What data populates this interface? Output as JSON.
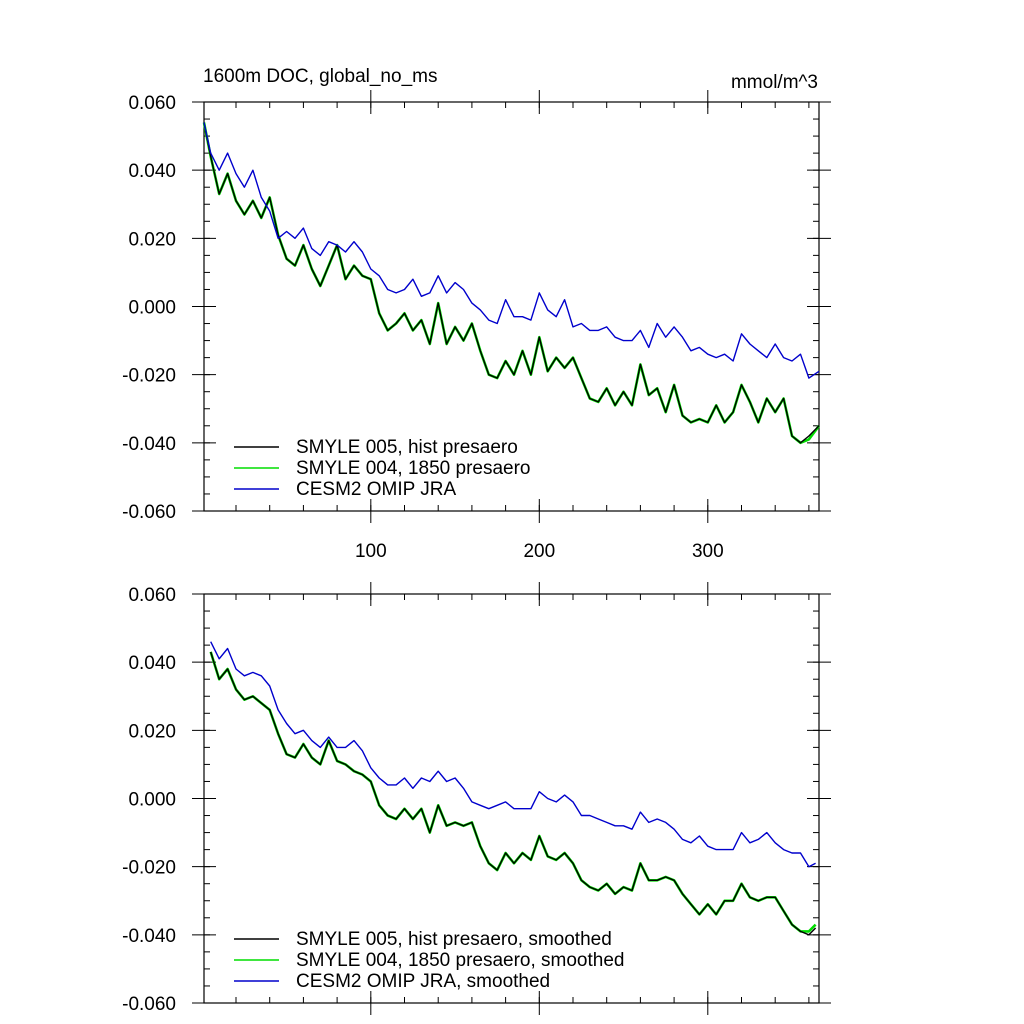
{
  "figure": {
    "title": "1600m DOC, global_no_ms",
    "units": "mmol/m^3",
    "colors": {
      "smyle005": "#000000",
      "smyle004": "#00dd00",
      "omip": "#0000cc"
    }
  },
  "chart_data": [
    {
      "type": "line",
      "panel": "top",
      "title": "1600m DOC, global_no_ms",
      "units_label": "mmol/m^3",
      "xlabel": "",
      "ylabel": "",
      "xlim": [
        1,
        366
      ],
      "ylim": [
        -0.06,
        0.06
      ],
      "x_ticks": [
        100,
        200,
        300
      ],
      "x_tick_labels": [
        "100",
        "200",
        "300"
      ],
      "y_ticks": [
        -0.06,
        -0.04,
        -0.02,
        0.0,
        0.02,
        0.04,
        0.06
      ],
      "y_tick_labels": [
        "-0.060",
        "-0.040",
        "-0.020",
        "0.000",
        "0.020",
        "0.040",
        "0.060"
      ],
      "legend_position": "bottom-left",
      "series": [
        {
          "name": "SMYLE 005, hist presaero",
          "color": "#000000",
          "x": [
            1,
            5,
            10,
            15,
            20,
            25,
            30,
            35,
            40,
            45,
            50,
            55,
            60,
            65,
            70,
            75,
            80,
            85,
            90,
            95,
            100,
            105,
            110,
            115,
            120,
            125,
            130,
            135,
            140,
            145,
            150,
            155,
            160,
            165,
            170,
            175,
            180,
            185,
            190,
            195,
            200,
            205,
            210,
            215,
            220,
            225,
            230,
            235,
            240,
            245,
            250,
            255,
            260,
            265,
            270,
            275,
            280,
            285,
            290,
            295,
            300,
            305,
            310,
            315,
            320,
            325,
            330,
            335,
            340,
            345,
            350,
            355,
            360,
            366
          ],
          "values": [
            0.054,
            0.044,
            0.033,
            0.039,
            0.031,
            0.027,
            0.031,
            0.026,
            0.032,
            0.021,
            0.014,
            0.012,
            0.018,
            0.011,
            0.006,
            0.012,
            0.018,
            0.008,
            0.012,
            0.009,
            0.008,
            -0.002,
            -0.007,
            -0.005,
            -0.002,
            -0.007,
            -0.004,
            -0.011,
            0.001,
            -0.011,
            -0.006,
            -0.01,
            -0.005,
            -0.013,
            -0.02,
            -0.021,
            -0.016,
            -0.02,
            -0.013,
            -0.02,
            -0.009,
            -0.019,
            -0.015,
            -0.018,
            -0.015,
            -0.021,
            -0.027,
            -0.028,
            -0.024,
            -0.029,
            -0.025,
            -0.029,
            -0.017,
            -0.026,
            -0.024,
            -0.031,
            -0.023,
            -0.032,
            -0.034,
            -0.033,
            -0.034,
            -0.029,
            -0.034,
            -0.031,
            -0.023,
            -0.028,
            -0.034,
            -0.027,
            -0.031,
            -0.027,
            -0.038,
            -0.04,
            -0.038,
            -0.035
          ]
        },
        {
          "name": "SMYLE 004, 1850 presaero",
          "color": "#00dd00",
          "x": [
            1,
            5,
            10,
            15,
            20,
            25,
            30,
            35,
            40,
            45,
            50,
            55,
            60,
            65,
            70,
            75,
            80,
            85,
            90,
            95,
            100,
            105,
            110,
            115,
            120,
            125,
            130,
            135,
            140,
            145,
            150,
            155,
            160,
            165,
            170,
            175,
            180,
            185,
            190,
            195,
            200,
            205,
            210,
            215,
            220,
            225,
            230,
            235,
            240,
            245,
            250,
            255,
            260,
            265,
            270,
            275,
            280,
            285,
            290,
            295,
            300,
            305,
            310,
            315,
            320,
            325,
            330,
            335,
            340,
            345,
            350,
            355,
            360,
            366
          ],
          "values": [
            0.054,
            0.044,
            0.033,
            0.039,
            0.031,
            0.027,
            0.031,
            0.026,
            0.032,
            0.021,
            0.014,
            0.012,
            0.018,
            0.011,
            0.006,
            0.012,
            0.018,
            0.008,
            0.012,
            0.009,
            0.008,
            -0.002,
            -0.007,
            -0.005,
            -0.002,
            -0.007,
            -0.004,
            -0.011,
            0.001,
            -0.011,
            -0.006,
            -0.01,
            -0.005,
            -0.013,
            -0.02,
            -0.021,
            -0.016,
            -0.02,
            -0.013,
            -0.02,
            -0.009,
            -0.019,
            -0.015,
            -0.018,
            -0.015,
            -0.021,
            -0.027,
            -0.028,
            -0.024,
            -0.029,
            -0.025,
            -0.029,
            -0.017,
            -0.026,
            -0.024,
            -0.031,
            -0.023,
            -0.032,
            -0.034,
            -0.033,
            -0.034,
            -0.029,
            -0.034,
            -0.031,
            -0.023,
            -0.028,
            -0.034,
            -0.027,
            -0.031,
            -0.027,
            -0.038,
            -0.04,
            -0.039,
            -0.035
          ]
        },
        {
          "name": "CESM2 OMIP JRA",
          "color": "#0000cc",
          "x": [
            1,
            5,
            10,
            15,
            20,
            25,
            30,
            35,
            40,
            45,
            50,
            55,
            60,
            65,
            70,
            75,
            80,
            85,
            90,
            95,
            100,
            105,
            110,
            115,
            120,
            125,
            130,
            135,
            140,
            145,
            150,
            155,
            160,
            165,
            170,
            175,
            180,
            185,
            190,
            195,
            200,
            205,
            210,
            215,
            220,
            225,
            230,
            235,
            240,
            245,
            250,
            255,
            260,
            265,
            270,
            275,
            280,
            285,
            290,
            295,
            300,
            305,
            310,
            315,
            320,
            325,
            330,
            335,
            340,
            345,
            350,
            355,
            360,
            366
          ],
          "values": [
            0.054,
            0.045,
            0.04,
            0.045,
            0.039,
            0.035,
            0.04,
            0.032,
            0.028,
            0.02,
            0.022,
            0.02,
            0.023,
            0.017,
            0.015,
            0.019,
            0.018,
            0.016,
            0.019,
            0.016,
            0.011,
            0.009,
            0.005,
            0.004,
            0.005,
            0.008,
            0.003,
            0.004,
            0.009,
            0.004,
            0.007,
            0.005,
            0.001,
            -0.001,
            -0.004,
            -0.005,
            0.002,
            -0.003,
            -0.003,
            -0.004,
            0.004,
            -0.001,
            -0.003,
            0.002,
            -0.006,
            -0.005,
            -0.007,
            -0.007,
            -0.006,
            -0.009,
            -0.01,
            -0.01,
            -0.007,
            -0.012,
            -0.005,
            -0.009,
            -0.006,
            -0.009,
            -0.013,
            -0.012,
            -0.014,
            -0.015,
            -0.014,
            -0.016,
            -0.008,
            -0.011,
            -0.013,
            -0.015,
            -0.011,
            -0.015,
            -0.016,
            -0.014,
            -0.021,
            -0.019
          ]
        }
      ]
    },
    {
      "type": "line",
      "panel": "bottom",
      "title": "",
      "xlabel": "",
      "ylabel": "",
      "xlim": [
        1,
        366
      ],
      "ylim": [
        -0.06,
        0.06
      ],
      "x_ticks": [
        100,
        200,
        300
      ],
      "x_tick_labels": [],
      "y_ticks": [
        -0.06,
        -0.04,
        -0.02,
        0.0,
        0.02,
        0.04,
        0.06
      ],
      "y_tick_labels": [
        "-0.060",
        "-0.040",
        "-0.020",
        "0.000",
        "0.020",
        "0.040",
        "0.060"
      ],
      "legend_position": "bottom-left",
      "series": [
        {
          "name": "SMYLE 005, hist presaero, smoothed",
          "color": "#000000",
          "x": [
            5,
            10,
            15,
            20,
            25,
            30,
            35,
            40,
            45,
            50,
            55,
            60,
            65,
            70,
            75,
            80,
            85,
            90,
            95,
            100,
            105,
            110,
            115,
            120,
            125,
            130,
            135,
            140,
            145,
            150,
            155,
            160,
            165,
            170,
            175,
            180,
            185,
            190,
            195,
            200,
            205,
            210,
            215,
            220,
            225,
            230,
            235,
            240,
            245,
            250,
            255,
            260,
            265,
            270,
            275,
            280,
            285,
            290,
            295,
            300,
            305,
            310,
            315,
            320,
            325,
            330,
            335,
            340,
            345,
            350,
            355,
            360,
            364
          ],
          "values": [
            0.043,
            0.035,
            0.038,
            0.032,
            0.029,
            0.03,
            0.028,
            0.026,
            0.019,
            0.013,
            0.012,
            0.016,
            0.012,
            0.01,
            0.017,
            0.011,
            0.01,
            0.008,
            0.007,
            0.005,
            -0.002,
            -0.005,
            -0.006,
            -0.003,
            -0.006,
            -0.003,
            -0.01,
            -0.002,
            -0.008,
            -0.007,
            -0.008,
            -0.007,
            -0.014,
            -0.019,
            -0.021,
            -0.016,
            -0.019,
            -0.016,
            -0.018,
            -0.011,
            -0.017,
            -0.018,
            -0.016,
            -0.019,
            -0.024,
            -0.026,
            -0.027,
            -0.025,
            -0.028,
            -0.026,
            -0.027,
            -0.019,
            -0.024,
            -0.024,
            -0.023,
            -0.024,
            -0.028,
            -0.031,
            -0.034,
            -0.031,
            -0.034,
            -0.03,
            -0.03,
            -0.025,
            -0.029,
            -0.03,
            -0.029,
            -0.029,
            -0.033,
            -0.037,
            -0.039,
            -0.04,
            -0.038
          ]
        },
        {
          "name": "SMYLE 004, 1850 presaero, smoothed",
          "color": "#00dd00",
          "x": [
            5,
            10,
            15,
            20,
            25,
            30,
            35,
            40,
            45,
            50,
            55,
            60,
            65,
            70,
            75,
            80,
            85,
            90,
            95,
            100,
            105,
            110,
            115,
            120,
            125,
            130,
            135,
            140,
            145,
            150,
            155,
            160,
            165,
            170,
            175,
            180,
            185,
            190,
            195,
            200,
            205,
            210,
            215,
            220,
            225,
            230,
            235,
            240,
            245,
            250,
            255,
            260,
            265,
            270,
            275,
            280,
            285,
            290,
            295,
            300,
            305,
            310,
            315,
            320,
            325,
            330,
            335,
            340,
            345,
            350,
            355,
            360,
            364
          ],
          "values": [
            0.043,
            0.035,
            0.038,
            0.032,
            0.029,
            0.03,
            0.028,
            0.026,
            0.019,
            0.013,
            0.012,
            0.016,
            0.012,
            0.01,
            0.017,
            0.011,
            0.01,
            0.008,
            0.007,
            0.005,
            -0.002,
            -0.005,
            -0.006,
            -0.003,
            -0.006,
            -0.003,
            -0.01,
            -0.002,
            -0.008,
            -0.007,
            -0.008,
            -0.007,
            -0.014,
            -0.019,
            -0.021,
            -0.016,
            -0.019,
            -0.016,
            -0.018,
            -0.011,
            -0.017,
            -0.018,
            -0.016,
            -0.019,
            -0.024,
            -0.026,
            -0.027,
            -0.025,
            -0.028,
            -0.026,
            -0.027,
            -0.019,
            -0.024,
            -0.024,
            -0.023,
            -0.024,
            -0.028,
            -0.031,
            -0.034,
            -0.031,
            -0.034,
            -0.03,
            -0.03,
            -0.025,
            -0.029,
            -0.03,
            -0.029,
            -0.029,
            -0.033,
            -0.037,
            -0.039,
            -0.039,
            -0.037
          ]
        },
        {
          "name": "CESM2 OMIP JRA, smoothed",
          "color": "#0000cc",
          "x": [
            5,
            10,
            15,
            20,
            25,
            30,
            35,
            40,
            45,
            50,
            55,
            60,
            65,
            70,
            75,
            80,
            85,
            90,
            95,
            100,
            105,
            110,
            115,
            120,
            125,
            130,
            135,
            140,
            145,
            150,
            155,
            160,
            165,
            170,
            175,
            180,
            185,
            190,
            195,
            200,
            205,
            210,
            215,
            220,
            225,
            230,
            235,
            240,
            245,
            250,
            255,
            260,
            265,
            270,
            275,
            280,
            285,
            290,
            295,
            300,
            305,
            310,
            315,
            320,
            325,
            330,
            335,
            340,
            345,
            350,
            355,
            360,
            364
          ],
          "values": [
            0.046,
            0.041,
            0.044,
            0.038,
            0.036,
            0.037,
            0.036,
            0.033,
            0.026,
            0.022,
            0.019,
            0.02,
            0.017,
            0.015,
            0.018,
            0.015,
            0.015,
            0.017,
            0.014,
            0.009,
            0.006,
            0.004,
            0.004,
            0.006,
            0.003,
            0.006,
            0.005,
            0.008,
            0.005,
            0.006,
            0.003,
            -0.001,
            -0.002,
            -0.003,
            -0.002,
            -0.001,
            -0.003,
            -0.003,
            -0.003,
            0.002,
            0.0,
            -0.001,
            0.001,
            -0.001,
            -0.005,
            -0.005,
            -0.006,
            -0.007,
            -0.008,
            -0.008,
            -0.009,
            -0.004,
            -0.007,
            -0.006,
            -0.007,
            -0.009,
            -0.012,
            -0.013,
            -0.011,
            -0.014,
            -0.015,
            -0.015,
            -0.015,
            -0.01,
            -0.013,
            -0.012,
            -0.01,
            -0.013,
            -0.015,
            -0.016,
            -0.016,
            -0.02,
            -0.019
          ]
        }
      ]
    }
  ]
}
